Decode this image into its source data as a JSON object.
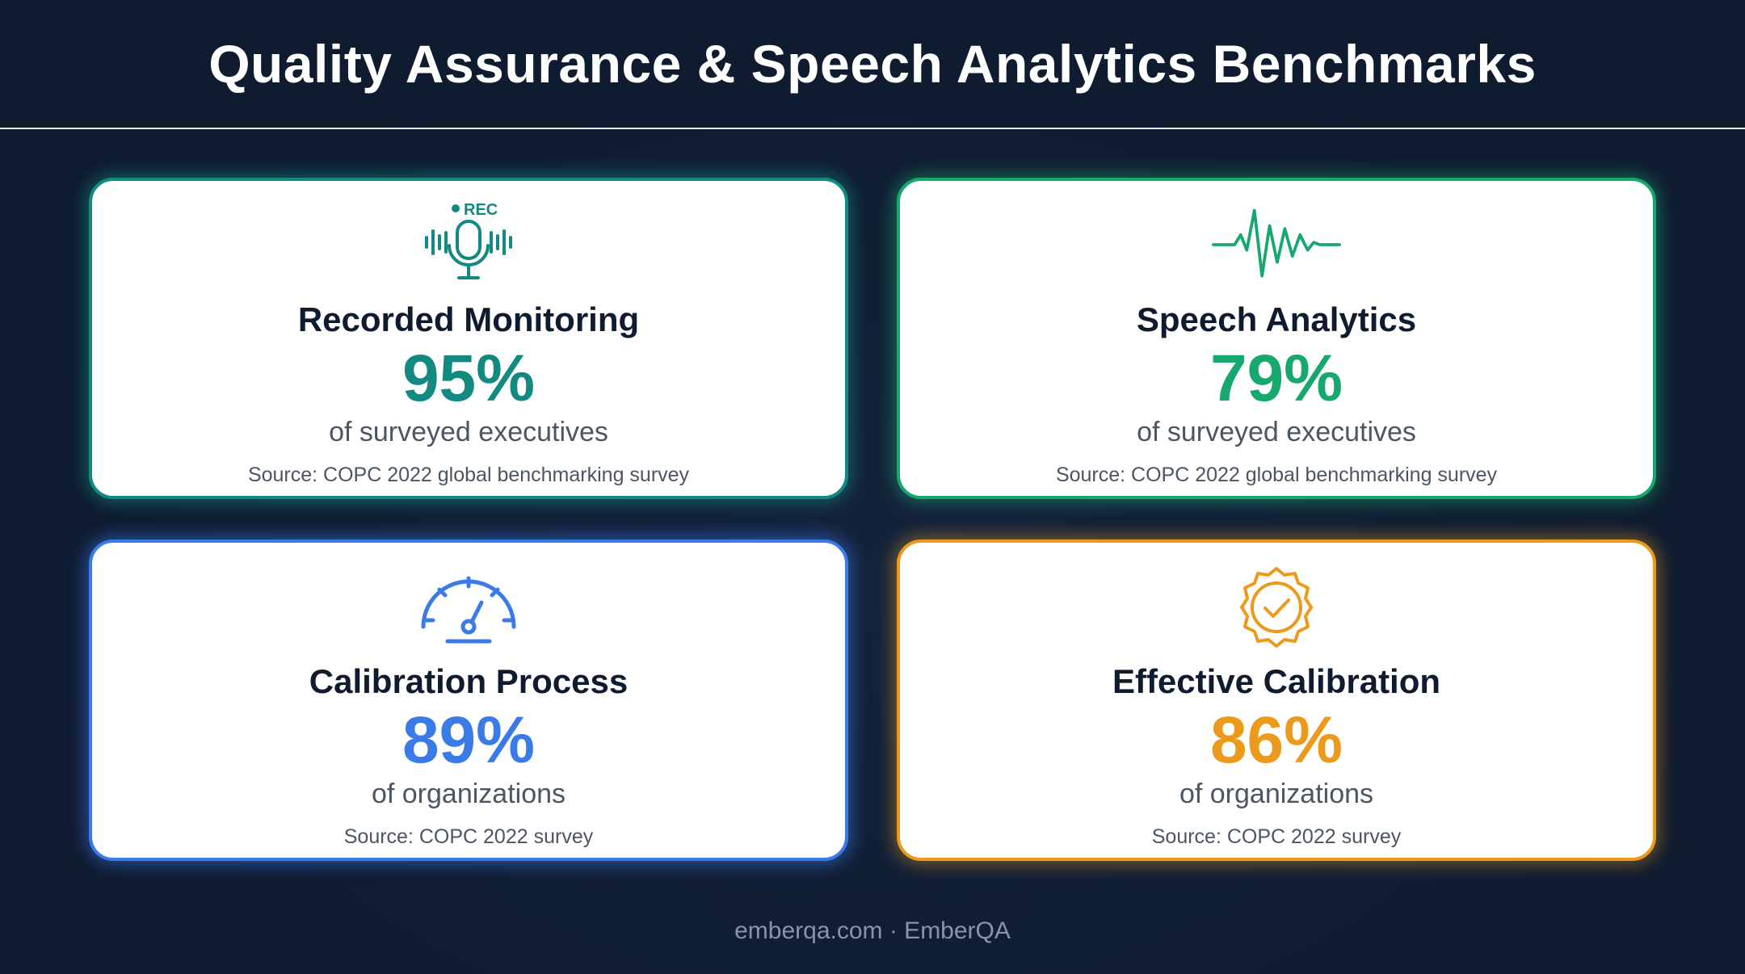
{
  "title": "Quality Assurance & Speech Analytics Benchmarks",
  "cards": [
    {
      "title": "Recorded Monitoring",
      "value": "95%",
      "label": "of surveyed executives",
      "source": "Source: COPC 2022 global benchmarking survey",
      "icon": "microphone-rec-icon",
      "icon_text": "●REC",
      "accent": "#128a82"
    },
    {
      "title": "Speech Analytics",
      "value": "79%",
      "label": "of surveyed executives",
      "source": "Source: COPC 2022 global benchmarking survey",
      "icon": "waveform-icon",
      "accent": "#16a86d"
    },
    {
      "title": "Calibration Process",
      "value": "89%",
      "label": "of organizations",
      "source": "Source: COPC 2022 survey",
      "icon": "gauge-icon",
      "accent": "#3b7be8"
    },
    {
      "title": "Effective Calibration",
      "value": "86%",
      "label": "of organizations",
      "source": "Source: COPC 2022 survey",
      "icon": "badge-check-icon",
      "accent": "#ec9a1b"
    }
  ],
  "footer": "emberqa.com · EmberQA"
}
